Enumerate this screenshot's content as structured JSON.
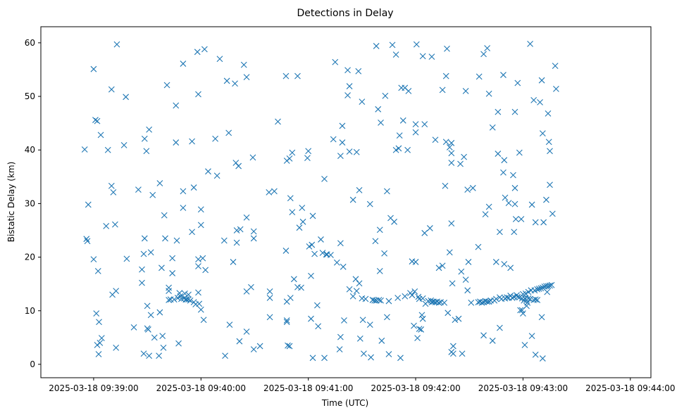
{
  "chart_data": {
    "type": "scatter",
    "title": "Detections in Delay",
    "xlabel": "Time (UTC)",
    "ylabel": "Bistatic Delay (km)",
    "marker": "x",
    "color": "#1f77b4",
    "x_unit": "seconds after 2025-03-18 09:39:00",
    "xlim": [
      -29.5,
      311.5
    ],
    "ylim": [
      -2.5,
      63
    ],
    "x_ticks": [
      {
        "value": 0,
        "label": "2025-03-18 09:39:00"
      },
      {
        "value": 60,
        "label": "2025-03-18 09:40:00"
      },
      {
        "value": 120,
        "label": "2025-03-18 09:41:00"
      },
      {
        "value": 180,
        "label": "2025-03-18 09:42:00"
      },
      {
        "value": 240,
        "label": "2025-03-18 09:43:00"
      },
      {
        "value": 300,
        "label": "2025-03-18 09:44:00"
      }
    ],
    "y_ticks": [
      {
        "value": 0,
        "label": "0"
      },
      {
        "value": 10,
        "label": "10"
      },
      {
        "value": 20,
        "label": "20"
      },
      {
        "value": 30,
        "label": "30"
      },
      {
        "value": 40,
        "label": "40"
      },
      {
        "value": 50,
        "label": "50"
      },
      {
        "value": 60,
        "label": "60"
      }
    ],
    "points": [
      [
        -5,
        40.1
      ],
      [
        -4,
        23.4
      ],
      [
        -3.5,
        23
      ],
      [
        -3,
        29.8
      ],
      [
        0,
        55.1
      ],
      [
        0,
        19.6
      ],
      [
        1,
        45.6
      ],
      [
        2,
        45.4
      ],
      [
        1.5,
        9.5
      ],
      [
        2.5,
        17.4
      ],
      [
        2,
        3.6
      ],
      [
        2.8,
        1.9
      ],
      [
        3,
        7.9
      ],
      [
        3.5,
        4
      ],
      [
        4,
        42.8
      ],
      [
        4.5,
        4.9
      ],
      [
        7,
        25.8
      ],
      [
        8,
        40
      ],
      [
        10,
        51.3
      ],
      [
        10,
        33.3
      ],
      [
        11,
        32.1
      ],
      [
        10.5,
        13
      ],
      [
        12,
        26.1
      ],
      [
        12.5,
        13.7
      ],
      [
        13,
        59.7
      ],
      [
        12.5,
        3.1
      ],
      [
        17,
        40.9
      ],
      [
        18,
        49.9
      ],
      [
        18.5,
        19.7
      ],
      [
        22.5,
        6.9
      ],
      [
        25,
        32.6
      ],
      [
        27,
        17.7
      ],
      [
        27,
        15.2
      ],
      [
        28,
        20.6
      ],
      [
        28,
        2
      ],
      [
        28.5,
        42.1
      ],
      [
        28.5,
        23.5
      ],
      [
        29.5,
        39.8
      ],
      [
        30,
        10.9
      ],
      [
        30,
        6.7
      ],
      [
        30.5,
        6.5
      ],
      [
        31,
        43.8
      ],
      [
        31,
        1.6
      ],
      [
        32,
        9.2
      ],
      [
        32,
        20.9
      ],
      [
        33,
        31.6
      ],
      [
        34,
        5
      ],
      [
        36.5,
        1.6
      ],
      [
        37,
        9.7
      ],
      [
        37,
        33.8
      ],
      [
        38,
        18
      ],
      [
        38.5,
        5.3
      ],
      [
        39,
        3.1
      ],
      [
        39.5,
        27.8
      ],
      [
        40,
        23.5
      ],
      [
        41,
        52.1
      ],
      [
        42,
        14.3
      ],
      [
        42,
        13.7
      ],
      [
        42,
        12
      ],
      [
        43,
        12.1
      ],
      [
        44,
        17
      ],
      [
        44,
        19.8
      ],
      [
        45,
        12.1
      ],
      [
        46,
        48.3
      ],
      [
        46,
        41.4
      ],
      [
        46.5,
        23.1
      ],
      [
        47,
        12.4
      ],
      [
        47.5,
        3.9
      ],
      [
        48,
        13.3
      ],
      [
        48.5,
        12.7
      ],
      [
        49,
        12.2
      ],
      [
        50,
        56.1
      ],
      [
        50,
        32.3
      ],
      [
        50,
        29.2
      ],
      [
        50.5,
        12.3
      ],
      [
        51,
        13.2
      ],
      [
        51.5,
        12.1
      ],
      [
        52,
        12.1
      ],
      [
        53,
        12.1
      ],
      [
        53,
        13
      ],
      [
        54,
        11.9
      ],
      [
        55,
        41.6
      ],
      [
        55,
        24.7
      ],
      [
        56,
        33
      ],
      [
        56,
        11.6
      ],
      [
        57,
        11.2
      ],
      [
        58,
        58.3
      ],
      [
        58.5,
        50.4
      ],
      [
        58.5,
        19.6
      ],
      [
        58.5,
        18.3
      ],
      [
        58.5,
        13.4
      ],
      [
        59,
        11.3
      ],
      [
        60,
        28.9
      ],
      [
        60,
        26
      ],
      [
        60,
        10.2
      ],
      [
        61,
        19.8
      ],
      [
        61.5,
        8.3
      ],
      [
        62,
        58.8
      ],
      [
        62.5,
        17.6
      ],
      [
        64,
        36
      ],
      [
        68,
        42.1
      ],
      [
        69,
        35.2
      ],
      [
        70.5,
        57
      ],
      [
        73,
        23.1
      ],
      [
        73.5,
        1.6
      ],
      [
        74.5,
        52.9
      ],
      [
        75.5,
        43.2
      ],
      [
        76,
        7.4
      ],
      [
        78,
        19.1
      ],
      [
        79,
        52.4
      ],
      [
        79.5,
        37.6
      ],
      [
        80,
        25
      ],
      [
        80,
        22.7
      ],
      [
        81,
        37
      ],
      [
        81.5,
        4.3
      ],
      [
        82,
        25.2
      ],
      [
        84,
        55.9
      ],
      [
        85.5,
        53.6
      ],
      [
        85.5,
        27.4
      ],
      [
        85.5,
        13.6
      ],
      [
        85.5,
        6.1
      ],
      [
        88,
        14.4
      ],
      [
        89,
        38.6
      ],
      [
        89.5,
        24.8
      ],
      [
        89.5,
        23.5
      ],
      [
        89.5,
        2.8
      ],
      [
        93,
        3.4
      ],
      [
        98,
        32.1
      ],
      [
        98.5,
        13.6
      ],
      [
        98.5,
        12.4
      ],
      [
        98.5,
        8.8
      ],
      [
        101,
        32.3
      ],
      [
        103,
        45.3
      ],
      [
        107.5,
        53.8
      ],
      [
        107.5,
        21.2
      ],
      [
        108,
        38
      ],
      [
        108,
        11.7
      ],
      [
        108,
        8.2
      ],
      [
        108,
        7.9
      ],
      [
        108.5,
        3.5
      ],
      [
        109.5,
        38.4
      ],
      [
        109.5,
        3.4
      ],
      [
        110,
        31
      ],
      [
        110,
        12.4
      ],
      [
        111,
        28.4
      ],
      [
        111,
        39.5
      ],
      [
        112,
        15.9
      ],
      [
        114,
        53.8
      ],
      [
        114,
        14.4
      ],
      [
        115,
        25.5
      ],
      [
        116,
        14.3
      ],
      [
        116.5,
        29.2
      ],
      [
        117,
        26.6
      ],
      [
        120,
        39.8
      ],
      [
        119.5,
        38.5
      ],
      [
        120.5,
        22
      ],
      [
        121.5,
        8.5
      ],
      [
        121.5,
        16.5
      ],
      [
        122,
        22.3
      ],
      [
        122.5,
        27.7
      ],
      [
        122.5,
        1.2
      ],
      [
        123.5,
        20.6
      ],
      [
        125,
        11
      ],
      [
        125.5,
        7.1
      ],
      [
        127,
        23.3
      ],
      [
        128,
        20.8
      ],
      [
        129,
        34.6
      ],
      [
        129,
        1.2
      ],
      [
        130,
        20.5
      ],
      [
        130.5,
        20.5
      ],
      [
        132.5,
        20.4
      ],
      [
        134,
        42
      ],
      [
        135,
        56.4
      ],
      [
        136,
        19
      ],
      [
        137.5,
        2.8
      ],
      [
        138,
        38.9
      ],
      [
        138,
        22.6
      ],
      [
        138,
        5.1
      ],
      [
        139,
        41.4
      ],
      [
        139,
        44.5
      ],
      [
        139.5,
        18.2
      ],
      [
        140,
        8.2
      ],
      [
        142,
        54.9
      ],
      [
        142,
        50.2
      ],
      [
        143,
        51.9
      ],
      [
        143,
        39.7
      ],
      [
        143,
        14
      ],
      [
        145,
        30.7
      ],
      [
        145,
        12.7
      ],
      [
        146.5,
        15.9
      ],
      [
        147,
        39.6
      ],
      [
        147,
        13.7
      ],
      [
        148,
        54.7
      ],
      [
        148.5,
        32.5
      ],
      [
        148.5,
        15.1
      ],
      [
        149,
        4.8
      ],
      [
        150,
        49
      ],
      [
        150,
        12.3
      ],
      [
        150.5,
        8.3
      ],
      [
        151,
        2
      ],
      [
        152,
        12.2
      ],
      [
        154.5,
        29.9
      ],
      [
        154.5,
        7.4
      ],
      [
        155,
        1.3
      ],
      [
        156,
        12
      ],
      [
        156,
        12
      ],
      [
        157,
        11.9
      ],
      [
        157.5,
        23
      ],
      [
        158,
        59.4
      ],
      [
        158,
        11.9
      ],
      [
        158,
        11.9
      ],
      [
        159,
        47.6
      ],
      [
        159.5,
        12
      ],
      [
        160,
        25.1
      ],
      [
        160,
        17.4
      ],
      [
        160.5,
        45.1
      ],
      [
        160.5,
        11.9
      ],
      [
        161,
        4.4
      ],
      [
        162.5,
        20.7
      ],
      [
        163,
        50.1
      ],
      [
        164,
        32.3
      ],
      [
        164,
        8.8
      ],
      [
        165,
        11.8
      ],
      [
        165,
        1.9
      ],
      [
        166,
        27.3
      ],
      [
        167,
        59.6
      ],
      [
        168,
        26.6
      ],
      [
        169,
        57.8
      ],
      [
        169,
        40
      ],
      [
        170,
        12.4
      ],
      [
        170.5,
        40.3
      ],
      [
        171,
        42.7
      ],
      [
        171.5,
        1.2
      ],
      [
        172,
        51.6
      ],
      [
        173,
        45.5
      ],
      [
        174,
        51.6
      ],
      [
        174,
        12.7
      ],
      [
        175.5,
        40
      ],
      [
        176,
        51
      ],
      [
        177,
        13.3
      ],
      [
        178,
        12.9
      ],
      [
        178,
        19.2
      ],
      [
        179,
        7.2
      ],
      [
        179.5,
        13.6
      ],
      [
        180,
        19.1
      ],
      [
        180,
        44.8
      ],
      [
        180,
        43.3
      ],
      [
        180.5,
        59.7
      ],
      [
        181,
        4.9
      ],
      [
        181.5,
        12.6
      ],
      [
        182,
        6.6
      ],
      [
        182,
        12.2
      ],
      [
        183,
        6.5
      ],
      [
        183.5,
        9.2
      ],
      [
        184,
        57.5
      ],
      [
        184,
        12.3
      ],
      [
        184,
        8.5
      ],
      [
        185,
        24.5
      ],
      [
        185,
        44.8
      ],
      [
        185.5,
        11.3
      ],
      [
        187,
        11.8
      ],
      [
        188,
        25.4
      ],
      [
        188.5,
        11.9
      ],
      [
        189,
        11.6
      ],
      [
        189,
        57.4
      ],
      [
        190,
        11.7
      ],
      [
        191,
        41.9
      ],
      [
        191,
        11.6
      ],
      [
        192,
        11.7
      ],
      [
        193,
        18
      ],
      [
        193,
        11.5
      ],
      [
        194,
        11.6
      ],
      [
        195,
        18.4
      ],
      [
        195,
        51.2
      ],
      [
        196,
        11.5
      ],
      [
        196.5,
        33.3
      ],
      [
        197,
        53.8
      ],
      [
        197,
        41.5
      ],
      [
        197.5,
        58.9
      ],
      [
        198,
        9.6
      ],
      [
        199,
        40.5
      ],
      [
        199,
        20.9
      ],
      [
        200,
        41.3
      ],
      [
        200,
        39.4
      ],
      [
        200,
        37.6
      ],
      [
        200,
        26.3
      ],
      [
        200.5,
        15.1
      ],
      [
        201,
        3.4
      ],
      [
        201,
        2
      ],
      [
        200,
        2.3
      ],
      [
        202,
        8.3
      ],
      [
        204,
        8.5
      ],
      [
        205,
        37.4
      ],
      [
        205.5,
        17.3
      ],
      [
        206,
        2
      ],
      [
        207,
        38.7
      ],
      [
        208,
        15.8
      ],
      [
        208,
        51
      ],
      [
        209,
        13.8
      ],
      [
        209,
        32.6
      ],
      [
        209.5,
        19.1
      ],
      [
        211,
        11.5
      ],
      [
        212,
        32.9
      ],
      [
        215,
        21.9
      ],
      [
        215,
        11.6
      ],
      [
        215.5,
        53.7
      ],
      [
        216,
        11.7
      ],
      [
        217,
        11.5
      ],
      [
        218,
        11.6
      ],
      [
        218,
        57.9
      ],
      [
        218,
        5.4
      ],
      [
        219,
        28
      ],
      [
        219,
        11.8
      ],
      [
        220,
        11.7
      ],
      [
        220,
        59
      ],
      [
        221,
        11.7
      ],
      [
        221,
        50.5
      ],
      [
        221,
        29.4
      ],
      [
        222,
        11.9
      ],
      [
        223,
        4.4
      ],
      [
        223,
        44.2
      ],
      [
        224,
        11.9
      ],
      [
        225,
        12.2
      ],
      [
        225,
        19.1
      ],
      [
        226,
        39.3
      ],
      [
        226,
        47.1
      ],
      [
        227,
        12.5
      ],
      [
        227,
        24.7
      ],
      [
        227,
        6.8
      ],
      [
        228,
        12.2
      ],
      [
        229,
        54
      ],
      [
        229,
        35.8
      ],
      [
        229.5,
        38.1
      ],
      [
        229.5,
        18.7
      ],
      [
        230,
        12.3
      ],
      [
        230,
        31.1
      ],
      [
        231,
        12.5
      ],
      [
        232,
        30.1
      ],
      [
        232,
        12.4
      ],
      [
        233,
        18
      ],
      [
        233,
        12.8
      ],
      [
        234,
        12.4
      ],
      [
        234.5,
        35.3
      ],
      [
        235,
        24.7
      ],
      [
        235,
        12.6
      ],
      [
        235.5,
        32.9
      ],
      [
        235.5,
        29.9
      ],
      [
        235.5,
        47.1
      ],
      [
        236,
        27.1
      ],
      [
        236.5,
        12.9
      ],
      [
        237,
        52.5
      ],
      [
        237,
        12.6
      ],
      [
        238,
        39.5
      ],
      [
        238,
        12.5
      ],
      [
        238.5,
        10.1
      ],
      [
        239,
        27.1
      ],
      [
        239.5,
        12.3
      ],
      [
        239.5,
        10.1
      ],
      [
        240,
        9.5
      ],
      [
        240,
        13.1
      ],
      [
        240.5,
        11.9
      ],
      [
        241,
        12.3
      ],
      [
        241,
        3.6
      ],
      [
        241.5,
        13.2
      ],
      [
        242,
        12
      ],
      [
        242,
        10.9
      ],
      [
        242.5,
        11.5
      ],
      [
        243,
        13.5
      ],
      [
        243,
        12.3
      ],
      [
        244,
        59.8
      ],
      [
        244,
        12.2
      ],
      [
        244.5,
        13.8
      ],
      [
        245,
        29.8
      ],
      [
        245,
        5.3
      ],
      [
        246,
        49.3
      ],
      [
        246,
        12
      ],
      [
        246.5,
        13.8
      ],
      [
        247,
        26.5
      ],
      [
        247,
        12.1
      ],
      [
        247,
        1.8
      ],
      [
        248,
        14
      ],
      [
        248,
        12
      ],
      [
        249,
        14.1
      ],
      [
        249.5,
        48.9
      ],
      [
        250,
        14.2
      ],
      [
        250.5,
        53
      ],
      [
        250.5,
        8.8
      ],
      [
        251,
        43.1
      ],
      [
        251,
        1.1
      ],
      [
        251,
        14.3
      ],
      [
        251.5,
        26.5
      ],
      [
        252,
        14.5
      ],
      [
        253,
        30.7
      ],
      [
        253,
        14.6
      ],
      [
        253.5,
        13.5
      ],
      [
        254,
        14.6
      ],
      [
        254,
        46.8
      ],
      [
        254.5,
        41.5
      ],
      [
        255,
        33.5
      ],
      [
        255,
        39.8
      ],
      [
        255,
        14.7
      ],
      [
        256,
        14.8
      ],
      [
        256.5,
        28.1
      ],
      [
        258,
        55.7
      ],
      [
        258.5,
        51.4
      ]
    ]
  }
}
